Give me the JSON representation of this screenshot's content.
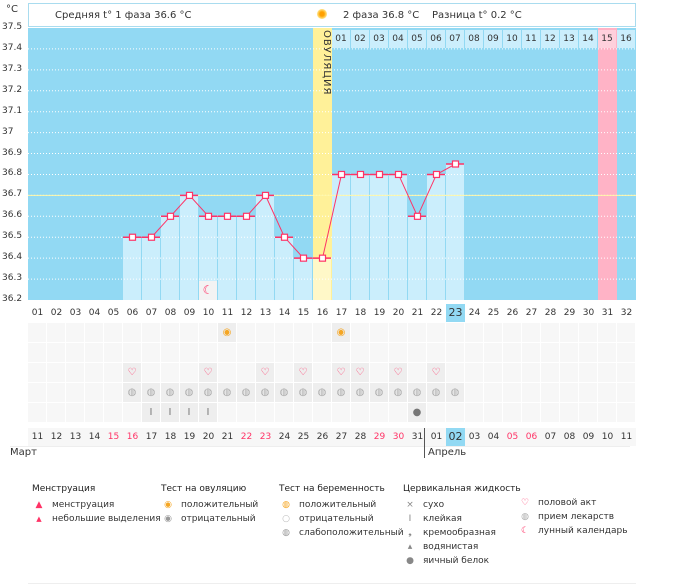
{
  "header": {
    "unit": "°C",
    "phase1": "Средняя t° 1 фаза 36.6 °C",
    "phase2": "2 фаза 36.8 °C",
    "diff": "Разница t° 0.2 °C",
    "ovulation_label": "ОВУЛЯЦИЯ"
  },
  "chart_data": {
    "type": "line",
    "ylim": [
      36.2,
      37.5
    ],
    "yticks": [
      "37.5",
      "37.4",
      "37.3",
      "37.2",
      "37.1",
      "37",
      "36.9",
      "36.8",
      "36.7",
      "36.6",
      "36.5",
      "36.4",
      "36.3",
      "36.2"
    ],
    "cycle_days": [
      "01",
      "02",
      "03",
      "04",
      "05",
      "06",
      "07",
      "08",
      "09",
      "10",
      "11",
      "12",
      "13",
      "14",
      "15",
      "16",
      "17",
      "18",
      "19",
      "20",
      "21",
      "22",
      "23",
      "24",
      "25",
      "26",
      "27",
      "28",
      "29",
      "30",
      "31",
      "32"
    ],
    "temperatures": [
      null,
      null,
      null,
      null,
      null,
      36.5,
      36.5,
      36.6,
      36.7,
      36.6,
      36.6,
      36.6,
      36.7,
      36.5,
      36.4,
      36.4,
      36.8,
      36.8,
      36.8,
      36.8,
      36.6,
      36.8,
      36.85,
      null,
      null,
      null,
      null,
      null,
      null,
      null,
      null,
      null
    ],
    "coverline": 36.7,
    "ovulation_day": 16,
    "today_cycle_day": 23,
    "expected_period_day": 31,
    "luteal_days": [
      "01",
      "02",
      "03",
      "04",
      "05",
      "06",
      "07",
      "08",
      "09",
      "10",
      "11",
      "12",
      "13",
      "14",
      "15",
      "16"
    ],
    "calendar_dates": [
      "11",
      "12",
      "13",
      "14",
      "15",
      "16",
      "17",
      "18",
      "19",
      "20",
      "21",
      "22",
      "23",
      "24",
      "25",
      "26",
      "27",
      "28",
      "29",
      "30",
      "31",
      "01",
      "02",
      "03",
      "04",
      "05",
      "06",
      "07",
      "08",
      "09",
      "10",
      "11"
    ],
    "weekend_dates_idx": [
      4,
      5,
      11,
      12,
      18,
      19,
      25,
      26
    ],
    "months": [
      "Март",
      "Апрель"
    ],
    "moon_day": 10,
    "ovulation_test_positive": [
      11,
      17
    ],
    "intercourse": [
      6,
      10,
      13,
      15,
      17,
      18,
      20,
      22
    ],
    "medication": [
      6,
      7,
      8,
      9,
      10,
      11,
      12,
      13,
      14,
      15,
      16,
      17,
      18,
      19,
      20,
      21,
      22,
      23
    ],
    "cervical_sticky": [
      7,
      8,
      9,
      10
    ],
    "cervical_eggwhite": [
      21
    ],
    "colors": {
      "plot": "#92d9f3",
      "bar": "#cbeefc",
      "line": "#ff3366",
      "ovulation": "#fff199",
      "period": "#ffb3c6",
      "coverline": "#fff7a8"
    }
  },
  "legend": {
    "menstruation": {
      "title": "Менструация",
      "items": [
        "менструация",
        "небольшие выделения"
      ]
    },
    "ovulation_test": {
      "title": "Тест на овуляцию",
      "items": [
        "положительный",
        "отрицательный"
      ]
    },
    "pregnancy_test": {
      "title": "Тест на беременность",
      "items": [
        "положительный",
        "отрицательный",
        "слабоположительный"
      ]
    },
    "cervical": {
      "title": "Цервикальная жидкость",
      "items": [
        "сухо",
        "клейкая",
        "кремообразная",
        "водянистая",
        "яичный белок"
      ]
    },
    "other": {
      "items": [
        "половой акт",
        "прием лекарств",
        "лунный календарь"
      ]
    }
  }
}
